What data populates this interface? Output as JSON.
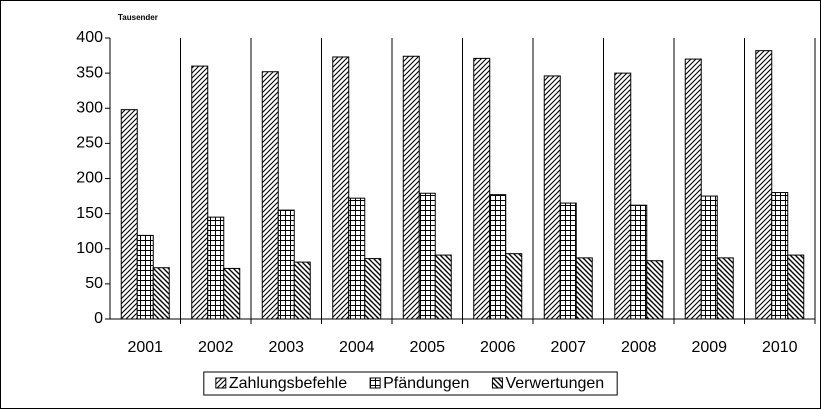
{
  "chart_data": {
    "type": "bar",
    "unit_label": "Tausender",
    "categories": [
      "2001",
      "2002",
      "2003",
      "2004",
      "2005",
      "2006",
      "2007",
      "2008",
      "2009",
      "2010"
    ],
    "series": [
      {
        "name": "Zahlungsbefehle",
        "color": "#000000",
        "pattern": "forward-diagonal",
        "values": [
          298,
          360,
          352,
          373,
          374,
          371,
          346,
          350,
          370,
          382
        ]
      },
      {
        "name": "Pfändungen",
        "color": "#000000",
        "pattern": "grid",
        "values": [
          119,
          145,
          155,
          172,
          179,
          177,
          165,
          162,
          175,
          180
        ]
      },
      {
        "name": "Verwertungen",
        "color": "#000000",
        "pattern": "back-diagonal",
        "values": [
          73,
          72,
          81,
          86,
          91,
          93,
          87,
          83,
          87,
          91
        ]
      }
    ],
    "ylim": [
      0,
      400
    ],
    "yticks": [
      0,
      50,
      100,
      150,
      200,
      250,
      300,
      350,
      400
    ],
    "category_dividers": true,
    "legend": "bottom"
  }
}
